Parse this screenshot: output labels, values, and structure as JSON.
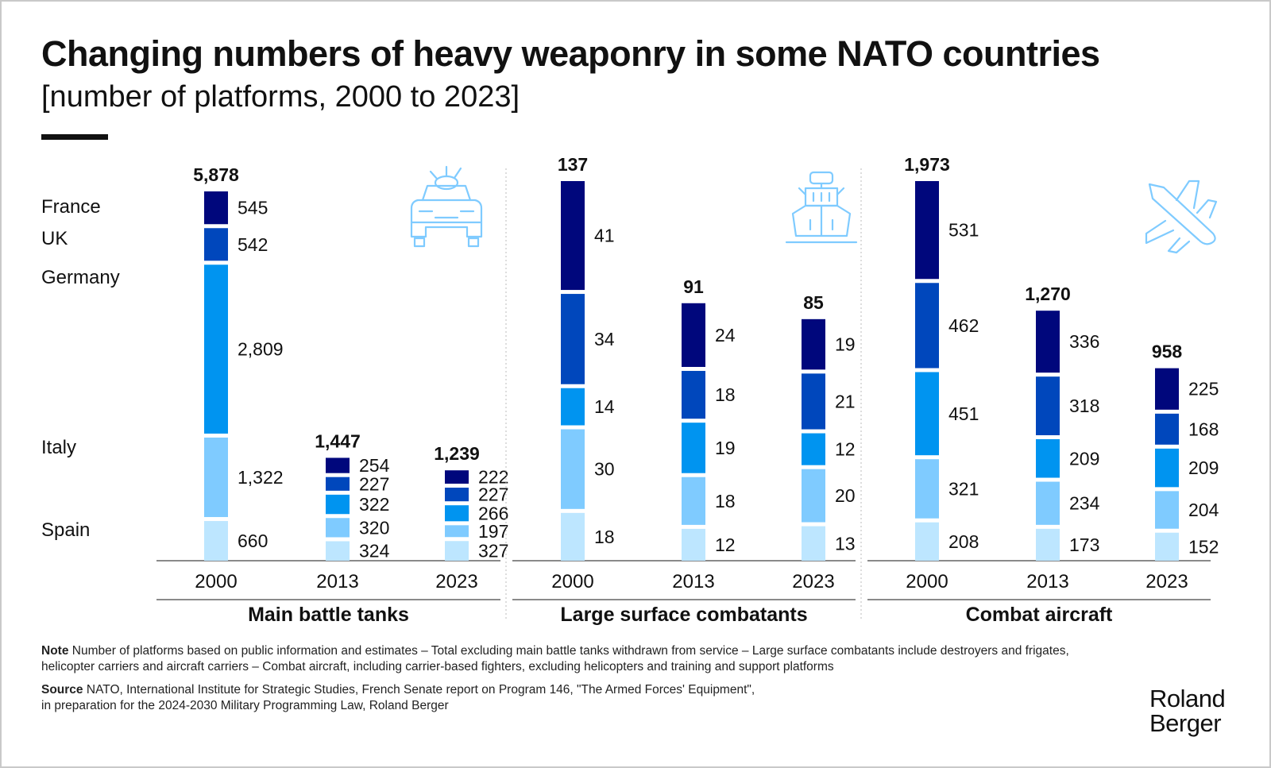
{
  "title": "Changing numbers of heavy weaponry in some NATO countries",
  "subtitle": "[number of platforms, 2000 to 2023]",
  "colors": {
    "France": "#00077c",
    "UK": "#0047bc",
    "Germany": "#0094f0",
    "Italy": "#7fcbff",
    "Spain": "#bde6ff",
    "icon": "#7fcbff"
  },
  "legend": [
    "France",
    "UK",
    "Germany",
    "Italy",
    "Spain"
  ],
  "chart_data": [
    {
      "type": "bar",
      "stacked": true,
      "title": "Main battle tanks",
      "icon": "tank-icon",
      "categories": [
        "2000",
        "2013",
        "2023"
      ],
      "totals": [
        "5,878",
        "1,447",
        "1,239"
      ],
      "series": [
        {
          "name": "France",
          "values": [
            545,
            254,
            222
          ],
          "labels": [
            "545",
            "254",
            "222"
          ]
        },
        {
          "name": "UK",
          "values": [
            542,
            227,
            227
          ],
          "labels": [
            "542",
            "227",
            "227"
          ]
        },
        {
          "name": "Germany",
          "values": [
            2809,
            322,
            266
          ],
          "labels": [
            "2,809",
            "322",
            "266"
          ]
        },
        {
          "name": "Italy",
          "values": [
            1322,
            320,
            197
          ],
          "labels": [
            "1,322",
            "320",
            "197"
          ]
        },
        {
          "name": "Spain",
          "values": [
            660,
            324,
            327
          ],
          "labels": [
            "660",
            "324",
            "327"
          ]
        }
      ]
    },
    {
      "type": "bar",
      "stacked": true,
      "title": "Large surface combatants",
      "icon": "ship-icon",
      "categories": [
        "2000",
        "2013",
        "2023"
      ],
      "totals": [
        "137",
        "91",
        "85"
      ],
      "series": [
        {
          "name": "France",
          "values": [
            41,
            24,
            19
          ],
          "labels": [
            "41",
            "24",
            "19"
          ]
        },
        {
          "name": "UK",
          "values": [
            34,
            18,
            21
          ],
          "labels": [
            "34",
            "18",
            "21"
          ]
        },
        {
          "name": "Germany",
          "values": [
            14,
            19,
            12
          ],
          "labels": [
            "14",
            "19",
            "12"
          ]
        },
        {
          "name": "Italy",
          "values": [
            30,
            18,
            20
          ],
          "labels": [
            "30",
            "18",
            "20"
          ]
        },
        {
          "name": "Spain",
          "values": [
            18,
            12,
            13
          ],
          "labels": [
            "18",
            "12",
            "13"
          ]
        }
      ]
    },
    {
      "type": "bar",
      "stacked": true,
      "title": "Combat aircraft",
      "icon": "fighter-jet-icon",
      "categories": [
        "2000",
        "2013",
        "2023"
      ],
      "totals": [
        "1,973",
        "1,270",
        "958"
      ],
      "series": [
        {
          "name": "France",
          "values": [
            531,
            336,
            225
          ],
          "labels": [
            "531",
            "336",
            "225"
          ]
        },
        {
          "name": "UK",
          "values": [
            462,
            318,
            168
          ],
          "labels": [
            "462",
            "318",
            "168"
          ]
        },
        {
          "name": "Germany",
          "values": [
            451,
            209,
            209
          ],
          "labels": [
            "451",
            "209",
            "209"
          ]
        },
        {
          "name": "Italy",
          "values": [
            321,
            234,
            204
          ],
          "labels": [
            "321",
            "234",
            "204"
          ]
        },
        {
          "name": "Spain",
          "values": [
            208,
            173,
            152
          ],
          "labels": [
            "208",
            "173",
            "152"
          ]
        }
      ]
    }
  ],
  "note": {
    "label": "Note",
    "text": "Number of platforms based on public information and estimates – Total excluding main battle tanks withdrawn from service – Large surface combatants include destroyers and frigates, helicopter carriers and aircraft carriers – Combat aircraft, including carrier-based fighters, excluding helicopters and training and support platforms"
  },
  "source": {
    "label": "Source",
    "line1": "NATO, International Institute for Strategic Studies, French Senate report on Program 146, \"The Armed Forces' Equipment\",",
    "line2": "in preparation for the 2024-2030 Military Programming Law, Roland Berger"
  },
  "logo": {
    "line1": "Roland",
    "line2": "Berger"
  }
}
